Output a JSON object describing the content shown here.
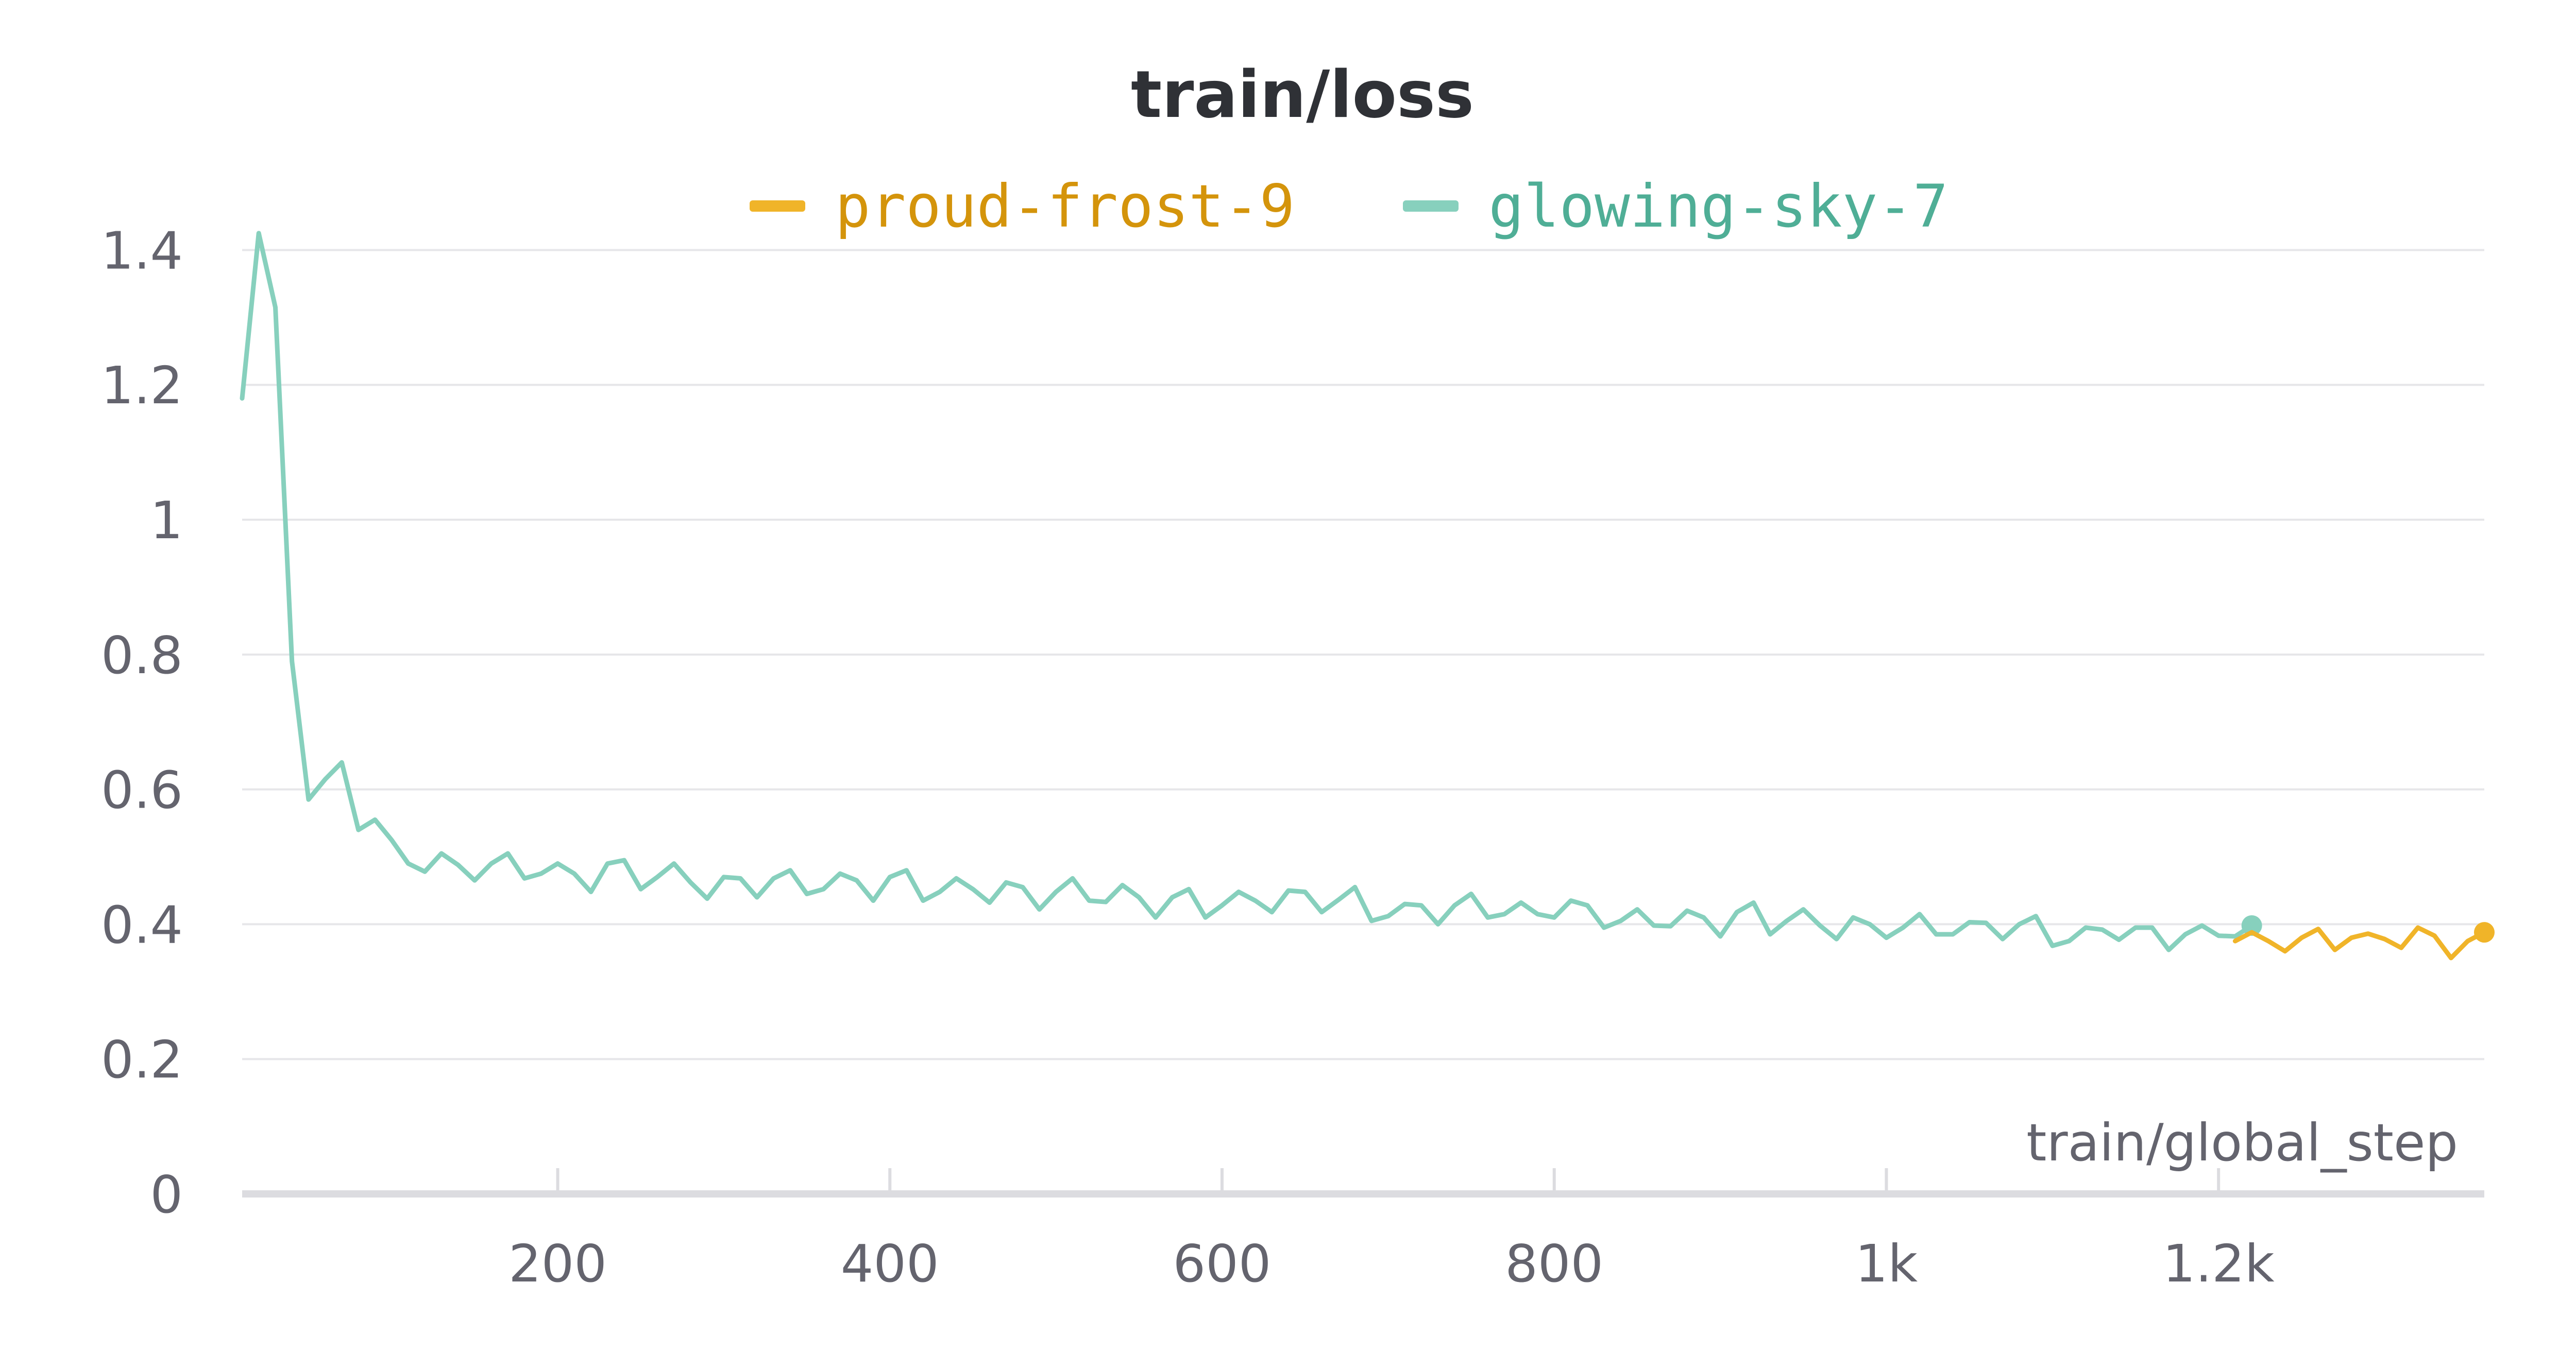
{
  "chart_data": {
    "type": "line",
    "title": "train/loss",
    "xlabel": "train/global_step",
    "ylabel": "",
    "xlim": [
      10,
      1360
    ],
    "ylim": [
      0,
      1.45
    ],
    "x_ticks": [
      {
        "value": 200,
        "label": "200"
      },
      {
        "value": 400,
        "label": "400"
      },
      {
        "value": 600,
        "label": "600"
      },
      {
        "value": 800,
        "label": "800"
      },
      {
        "value": 1000,
        "label": "1k"
      },
      {
        "value": 1200,
        "label": "1.2k"
      }
    ],
    "y_ticks": [
      {
        "value": 0,
        "label": "0"
      },
      {
        "value": 0.2,
        "label": "0.2"
      },
      {
        "value": 0.4,
        "label": "0.4"
      },
      {
        "value": 0.6,
        "label": "0.6"
      },
      {
        "value": 0.8,
        "label": "0.8"
      },
      {
        "value": 1,
        "label": "1"
      },
      {
        "value": 1.2,
        "label": "1.2"
      },
      {
        "value": 1.4,
        "label": "1.4"
      }
    ],
    "grid": true,
    "legend_position": "top-center",
    "series": [
      {
        "name": "proud-frost-9",
        "color": "#f0b429",
        "label_color": "#d4940b",
        "x": [
          1210,
          1220,
          1230,
          1240,
          1250,
          1260,
          1270,
          1280,
          1290,
          1300,
          1310,
          1320,
          1330,
          1340,
          1350,
          1360
        ],
        "y": [
          0.375,
          0.388,
          0.375,
          0.36,
          0.38,
          0.393,
          0.362,
          0.38,
          0.386,
          0.378,
          0.365,
          0.395,
          0.383,
          0.35,
          0.375,
          0.388
        ]
      },
      {
        "name": "glowing-sky-7",
        "color": "#87d0bd",
        "label_color": "#4fae96",
        "x": [
          10,
          20,
          30,
          40,
          50,
          60,
          70,
          80,
          90,
          100,
          110,
          120,
          130,
          140,
          150,
          160,
          170,
          180,
          190,
          200,
          210,
          220,
          230,
          240,
          250,
          260,
          270,
          280,
          290,
          300,
          310,
          320,
          330,
          340,
          350,
          360,
          370,
          380,
          390,
          400,
          410,
          420,
          430,
          440,
          450,
          460,
          470,
          480,
          490,
          500,
          510,
          520,
          530,
          540,
          550,
          560,
          570,
          580,
          590,
          600,
          610,
          620,
          630,
          640,
          650,
          660,
          670,
          680,
          690,
          700,
          710,
          720,
          730,
          740,
          750,
          760,
          770,
          780,
          790,
          800,
          810,
          820,
          830,
          840,
          850,
          860,
          870,
          880,
          890,
          900,
          910,
          920,
          930,
          940,
          950,
          960,
          970,
          980,
          990,
          1000,
          1010,
          1020,
          1030,
          1040,
          1050,
          1060,
          1070,
          1080,
          1090,
          1100,
          1110,
          1120,
          1130,
          1140,
          1150,
          1160,
          1170,
          1180,
          1190,
          1200,
          1210,
          1220
        ],
        "y": [
          1.18,
          1.425,
          1.315,
          0.79,
          0.585,
          0.615,
          0.64,
          0.54,
          0.555,
          0.525,
          0.49,
          0.478,
          0.505,
          0.488,
          0.465,
          0.49,
          0.505,
          0.468,
          0.475,
          0.49,
          0.475,
          0.448,
          0.49,
          0.495,
          0.452,
          0.47,
          0.49,
          0.462,
          0.438,
          0.47,
          0.468,
          0.44,
          0.468,
          0.48,
          0.445,
          0.452,
          0.475,
          0.465,
          0.435,
          0.47,
          0.48,
          0.435,
          0.448,
          0.468,
          0.452,
          0.432,
          0.462,
          0.455,
          0.422,
          0.448,
          0.468,
          0.435,
          0.433,
          0.458,
          0.44,
          0.41,
          0.44,
          0.452,
          0.41,
          0.428,
          0.448,
          0.435,
          0.418,
          0.45,
          0.448,
          0.418,
          0.436,
          0.455,
          0.405,
          0.412,
          0.43,
          0.428,
          0.4,
          0.428,
          0.445,
          0.41,
          0.415,
          0.432,
          0.415,
          0.41,
          0.435,
          0.428,
          0.395,
          0.405,
          0.422,
          0.398,
          0.397,
          0.42,
          0.41,
          0.382,
          0.418,
          0.432,
          0.385,
          0.405,
          0.422,
          0.398,
          0.378,
          0.41,
          0.4,
          0.38,
          0.395,
          0.415,
          0.385,
          0.385,
          0.403,
          0.402,
          0.378,
          0.4,
          0.412,
          0.368,
          0.375,
          0.395,
          0.392,
          0.377,
          0.395,
          0.395,
          0.362,
          0.385,
          0.398,
          0.383,
          0.382,
          0.398
        ]
      }
    ]
  }
}
